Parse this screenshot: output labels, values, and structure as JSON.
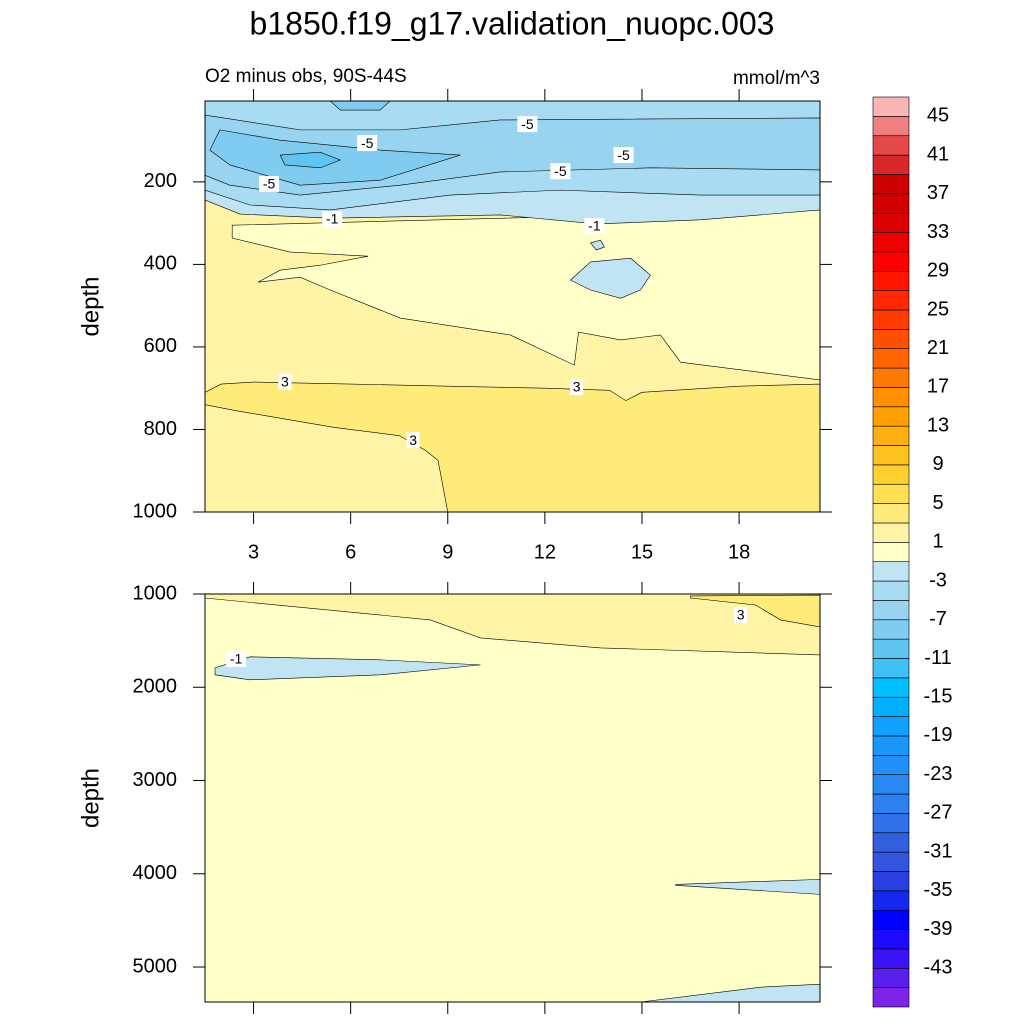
{
  "title": "b1850.f19_g17.validation_nuopc.003",
  "colorbar": {
    "clim": [
      -47,
      47
    ],
    "colors": [
      "#7E22E6",
      "#5A1EEE",
      "#3A14F5",
      "#1E0AFF",
      "#0000FF",
      "#1428F0",
      "#2840E0",
      "#3355DD",
      "#3060E0",
      "#3070E8",
      "#2C80F0",
      "#2888F4",
      "#2090F8",
      "#1898FC",
      "#10A0FF",
      "#00B0FF",
      "#00C0FF",
      "#40C0F4",
      "#60C4F0",
      "#80CCF0",
      "#98D4F0",
      "#A8DCF2",
      "#C0E4F4",
      "#FFFFC8",
      "#FFF3A5",
      "#FFEB7A",
      "#FFE050",
      "#FFD030",
      "#FFC320",
      "#FFB010",
      "#FFA000",
      "#FF9000",
      "#FF7800",
      "#FF6400",
      "#FF5000",
      "#FF3C00",
      "#FF2800",
      "#FF1400",
      "#FF0000",
      "#EE0000",
      "#DD0000",
      "#D40000",
      "#CC0000",
      "#D82828",
      "#E44848",
      "#F08080",
      "#F9B4B4"
    ],
    "ticks": [
      -43,
      -39,
      -35,
      -31,
      -27,
      -23,
      -19,
      -15,
      -11,
      -7,
      -3,
      1,
      5,
      9,
      13,
      17,
      21,
      25,
      29,
      33,
      37,
      41,
      45
    ]
  },
  "chart_data": [
    {
      "type": "contour",
      "subtitle_left": "O2 minus obs, 90S-44S",
      "subtitle_right": "mmol/m^3",
      "ylabel": "depth",
      "xlim": [
        1.5,
        20.5
      ],
      "ylim": [
        4,
        1000
      ],
      "y_reversed": true,
      "xticks": [
        3,
        6,
        9,
        12,
        15,
        18
      ],
      "xtick_labels": true,
      "yticks": [
        200,
        400,
        600,
        800,
        1000
      ],
      "base_level": 1,
      "regions": [
        {
          "level": 3,
          "points": [
            [
              1.5,
              710
            ],
            [
              2,
              690
            ],
            [
              3,
              685
            ],
            [
              6,
              690
            ],
            [
              9,
              695
            ],
            [
              12,
              700
            ],
            [
              14,
              705
            ],
            [
              14.5,
              730
            ],
            [
              15,
              710
            ],
            [
              18,
              695
            ],
            [
              20.5,
              690
            ],
            [
              20.5,
              1000
            ],
            [
              9,
              1000
            ],
            [
              8.7,
              875
            ],
            [
              8.3,
              850
            ],
            [
              7.5,
              815
            ],
            [
              5.5,
              795
            ],
            [
              4,
              775
            ],
            [
              2.5,
              755
            ],
            [
              1.5,
              740
            ]
          ]
        },
        {
          "level": -1,
          "points": [
            [
              2.34,
              305
            ],
            [
              20.5,
              268
            ],
            [
              20.5,
              680
            ],
            [
              16.19,
              637
            ],
            [
              15.57,
              571
            ],
            [
              14.34,
              583
            ],
            [
              13.04,
              564
            ],
            [
              12.91,
              644
            ],
            [
              10.93,
              571
            ],
            [
              7.53,
              530
            ],
            [
              5.37,
              462
            ],
            [
              4.44,
              431
            ],
            [
              3.14,
              443
            ],
            [
              3.82,
              414
            ],
            [
              5.06,
              402
            ],
            [
              6.54,
              380
            ],
            [
              4.13,
              370
            ],
            [
              2.34,
              336
            ]
          ]
        },
        {
          "level": -3,
          "points": [
            [
              1.5,
              4
            ],
            [
              20.5,
              4
            ],
            [
              20.5,
              268
            ],
            [
              16.81,
              292
            ],
            [
              13.6,
              302
            ],
            [
              10.62,
              280
            ],
            [
              5.37,
              288
            ],
            [
              2.58,
              278
            ],
            [
              1.5,
              244
            ]
          ]
        },
        {
          "level": -5,
          "points": [
            [
              1.5,
              4
            ],
            [
              20.5,
              4
            ],
            [
              20.5,
              232
            ],
            [
              16.81,
              232
            ],
            [
              12.48,
              220
            ],
            [
              9.08,
              232
            ],
            [
              5.37,
              268
            ],
            [
              2.89,
              256
            ],
            [
              1.5,
              220
            ]
          ]
        },
        {
          "level": -7,
          "points": [
            [
              1.5,
              38
            ],
            [
              4.44,
              74
            ],
            [
              7.53,
              74
            ],
            [
              10.62,
              50
            ],
            [
              20.5,
              45
            ],
            [
              20.5,
              171
            ],
            [
              15.26,
              166
            ],
            [
              10.62,
              176
            ],
            [
              7.53,
              208
            ],
            [
              4.44,
              232
            ],
            [
              2.27,
              208
            ],
            [
              1.5,
              184
            ]
          ]
        },
        {
          "level": -9,
          "points": [
            [
              1.96,
              74
            ],
            [
              3.82,
              99
            ],
            [
              6.91,
              123
            ],
            [
              9.39,
              135
            ],
            [
              6.91,
              196
            ],
            [
              4.44,
              208
            ],
            [
              2.27,
              159
            ],
            [
              1.65,
              123
            ]
          ]
        },
        {
          "level": -11,
          "points": [
            [
              3.82,
              135
            ],
            [
              5.06,
              128
            ],
            [
              5.68,
              147
            ],
            [
              5.06,
              166
            ],
            [
              3.97,
              159
            ]
          ]
        },
        {
          "level": -9,
          "points": [
            [
              5.37,
              4
            ],
            [
              7.22,
              4
            ],
            [
              6.91,
              26
            ],
            [
              5.68,
              26
            ]
          ]
        },
        {
          "level": -3,
          "points": [
            [
              12.79,
              438
            ],
            [
              13.41,
              394
            ],
            [
              14.65,
              385
            ],
            [
              15.26,
              426
            ],
            [
              14.95,
              462
            ],
            [
              14.34,
              482
            ],
            [
              13.41,
              462
            ]
          ]
        },
        {
          "level": -3,
          "points": [
            [
              13.41,
              348
            ],
            [
              13.72,
              341
            ],
            [
              13.84,
              358
            ],
            [
              13.59,
              365
            ]
          ]
        }
      ],
      "labels": [
        {
          "value": -5,
          "x": 11.46,
          "y": 60
        },
        {
          "value": -5,
          "x": 6.51,
          "y": 106
        },
        {
          "value": -5,
          "x": 14.43,
          "y": 135
        },
        {
          "value": -5,
          "x": 12.48,
          "y": 174
        },
        {
          "value": -5,
          "x": 3.48,
          "y": 205
        },
        {
          "value": -1,
          "x": 5.43,
          "y": 290
        },
        {
          "value": -1,
          "x": 13.53,
          "y": 307
        },
        {
          "value": 3,
          "x": 3.97,
          "y": 685
        },
        {
          "value": 3,
          "x": 12.98,
          "y": 697
        },
        {
          "value": 3,
          "x": 7.93,
          "y": 826
        }
      ]
    },
    {
      "type": "contour",
      "ylabel": "depth",
      "xlim": [
        1.5,
        20.5
      ],
      "ylim": [
        1000,
        5375
      ],
      "y_reversed": true,
      "xticks": [
        3,
        6,
        9,
        12,
        15,
        18
      ],
      "xtick_labels": false,
      "yticks": [
        1000,
        2000,
        3000,
        4000,
        5000
      ],
      "base_level": -1,
      "regions": [
        {
          "level": 1,
          "points": [
            [
              1.5,
              1000
            ],
            [
              20.5,
              1000
            ],
            [
              20.5,
              1653
            ],
            [
              13.72,
              1578
            ],
            [
              10.01,
              1471
            ],
            [
              8.46,
              1278
            ],
            [
              1.5,
              1043
            ]
          ]
        },
        {
          "level": 3,
          "points": [
            [
              16.5,
              1021
            ],
            [
              20.5,
              1011
            ],
            [
              20.5,
              1353
            ],
            [
              19.28,
              1278
            ],
            [
              18.51,
              1118
            ],
            [
              16.5,
              1043
            ]
          ]
        },
        {
          "level": -3,
          "points": [
            [
              1.81,
              1792
            ],
            [
              2.89,
              1674
            ],
            [
              6.91,
              1706
            ],
            [
              10.01,
              1760
            ],
            [
              6.91,
              1867
            ],
            [
              2.89,
              1920
            ],
            [
              1.81,
              1867
            ]
          ]
        },
        {
          "level": -3,
          "points": [
            [
              16.04,
              4114
            ],
            [
              20.5,
              4060
            ],
            [
              20.5,
              4221
            ],
            [
              16.04,
              4124
            ]
          ]
        },
        {
          "level": -3,
          "points": [
            [
              14.96,
              5375
            ],
            [
              18.67,
              5216
            ],
            [
              20.5,
              5184
            ],
            [
              20.5,
              5375
            ]
          ]
        }
      ],
      "labels": [
        {
          "value": -1,
          "x": 2.46,
          "y": 1696
        },
        {
          "value": 3,
          "x": 18.05,
          "y": 1225
        }
      ]
    }
  ]
}
